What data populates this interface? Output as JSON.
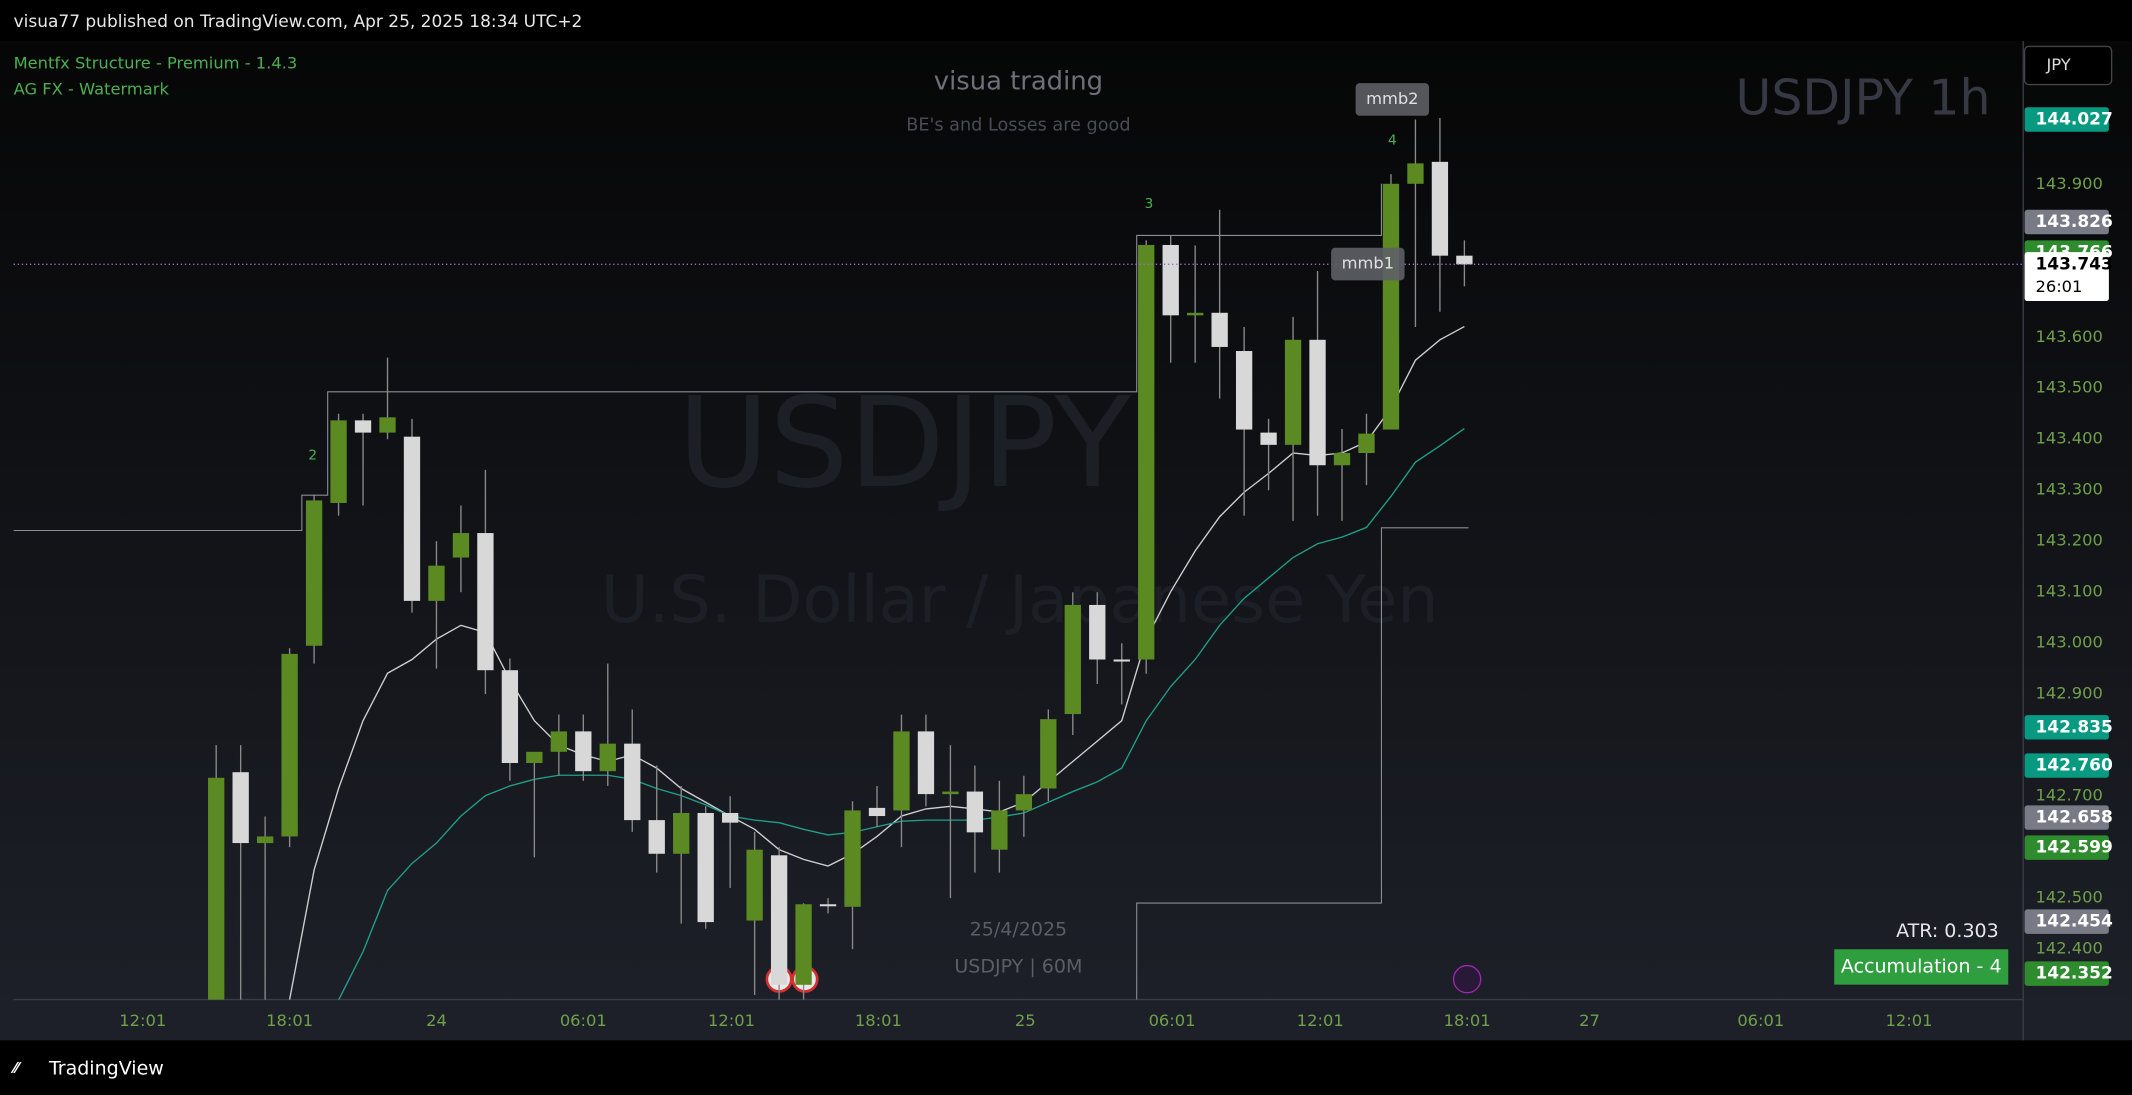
{
  "header": "visua77 published on TradingView.com, Apr 25, 2025 18:34 UTC+2",
  "indicators": [
    "Mentfx Structure - Premium - 1.4.3",
    "AG FX - Watermark"
  ],
  "watermark": {
    "brand": "visua trading",
    "motto": "BE's and Losses are good",
    "symbol_interval": "USDJPY 1h",
    "symbol": "USDJPY",
    "description": "U.S. Dollar / Japanese Yen",
    "date": "25/4/2025",
    "footer": "USDJPY | 60M"
  },
  "currency": "JPY",
  "atr": "ATR: 0.303",
  "phase": "Accumulation - 4",
  "brand": "TradingView",
  "chart_data": {
    "type": "candlestick",
    "colors": {
      "up": "#5b8a22",
      "down": "#d8d8d8",
      "wick": "#8a8a8a"
    },
    "candles": {
      "open": [
        142.25,
        142.747,
        142.608,
        142.621,
        142.995,
        143.275,
        143.437,
        143.413,
        143.405,
        143.083,
        143.168,
        143.216,
        142.947,
        142.765,
        142.787,
        142.827,
        142.749,
        142.803,
        142.653,
        142.587,
        142.667,
        142.667,
        142.456,
        142.584,
        142.33,
        142.488,
        142.483,
        142.677,
        142.672,
        142.827,
        142.704,
        142.709,
        142.595,
        142.672,
        142.715,
        142.861,
        143.075,
        142.968,
        142.968,
        143.781,
        143.643,
        143.648,
        143.573,
        143.413,
        143.389,
        143.595,
        143.349,
        143.373,
        143.419,
        143.901,
        143.944,
        143.76
      ],
      "high": [
        142.8,
        142.8,
        142.66,
        142.99,
        143.29,
        143.45,
        143.45,
        143.56,
        143.44,
        143.2,
        143.27,
        143.34,
        142.97,
        142.78,
        142.86,
        142.86,
        142.96,
        142.87,
        142.76,
        142.72,
        142.68,
        142.7,
        142.63,
        142.6,
        142.49,
        142.5,
        142.69,
        142.72,
        142.86,
        142.86,
        142.8,
        142.76,
        142.73,
        142.74,
        142.87,
        143.1,
        143.1,
        143.0,
        143.79,
        143.8,
        143.78,
        143.85,
        143.62,
        143.44,
        143.64,
        143.73,
        143.42,
        143.45,
        143.92,
        144.027,
        144.03,
        143.79
      ],
      "low": [
        142.2,
        142.29,
        142.3,
        142.6,
        142.96,
        143.25,
        143.27,
        143.4,
        143.06,
        142.95,
        143.1,
        142.9,
        142.73,
        142.58,
        142.74,
        142.73,
        142.72,
        142.63,
        142.55,
        142.45,
        142.44,
        142.52,
        142.31,
        142.3,
        142.3,
        142.47,
        142.4,
        142.64,
        142.6,
        142.68,
        142.5,
        142.55,
        142.55,
        142.62,
        142.69,
        142.82,
        142.92,
        142.88,
        142.94,
        143.55,
        143.55,
        143.48,
        143.25,
        143.3,
        143.24,
        143.25,
        143.24,
        143.31,
        143.42,
        143.62,
        143.65,
        143.7
      ],
      "close": [
        142.736,
        142.608,
        142.621,
        142.979,
        143.28,
        143.437,
        143.413,
        143.443,
        143.083,
        143.152,
        143.216,
        142.947,
        142.765,
        142.787,
        142.827,
        142.749,
        142.803,
        142.653,
        142.587,
        142.667,
        142.453,
        142.648,
        142.595,
        142.33,
        142.488,
        142.485,
        142.672,
        142.661,
        142.827,
        142.704,
        142.709,
        142.629,
        142.672,
        142.704,
        142.851,
        143.075,
        142.968,
        142.965,
        143.781,
        143.643,
        143.648,
        143.581,
        143.419,
        143.389,
        143.595,
        143.349,
        143.373,
        143.411,
        143.901,
        143.941,
        143.76,
        143.743
      ]
    },
    "series": [
      {
        "color": "#cfcfcf",
        "values": [
          null,
          null,
          null,
          142.301,
          142.555,
          142.715,
          142.848,
          142.941,
          142.968,
          143.008,
          143.035,
          143.021,
          142.928,
          142.848,
          142.8,
          142.781,
          142.768,
          142.781,
          142.755,
          142.715,
          142.688,
          142.661,
          142.635,
          142.595,
          142.576,
          142.563,
          142.587,
          142.621,
          142.661,
          142.675,
          142.68,
          142.675,
          142.669,
          142.688,
          142.728,
          142.768,
          142.808,
          142.848,
          143.008,
          143.101,
          143.181,
          143.248,
          143.296,
          143.333,
          143.373,
          143.368,
          143.373,
          143.395,
          143.461,
          143.555,
          143.595,
          143.621
        ]
      },
      {
        "color": "#1f9e88",
        "values": [
          null,
          null,
          null,
          null,
          null,
          142.3,
          142.395,
          142.515,
          142.568,
          142.608,
          142.661,
          142.701,
          142.72,
          142.733,
          142.741,
          142.741,
          142.741,
          142.733,
          142.715,
          142.701,
          142.683,
          142.661,
          142.653,
          142.648,
          142.635,
          142.624,
          142.629,
          142.64,
          142.651,
          142.653,
          142.653,
          142.653,
          142.659,
          142.667,
          142.688,
          142.709,
          142.728,
          142.755,
          142.848,
          142.915,
          142.968,
          143.035,
          143.088,
          143.128,
          143.168,
          143.195,
          143.208,
          143.227,
          143.288,
          143.355,
          143.387,
          143.421
        ]
      }
    ],
    "ylim": [
      142.301,
      144.181
    ],
    "yticks": [
      {
        "value": 142.4,
        "label": "142.400"
      },
      {
        "value": 142.5,
        "label": "142.500"
      },
      {
        "value": 142.7,
        "label": "142.700"
      },
      {
        "value": 142.9,
        "label": "142.900"
      },
      {
        "value": 143.0,
        "label": "143.000"
      },
      {
        "value": 143.1,
        "label": "143.100"
      },
      {
        "value": 143.2,
        "label": "143.200"
      },
      {
        "value": 143.3,
        "label": "143.300"
      },
      {
        "value": 143.4,
        "label": "143.400"
      },
      {
        "value": 143.5,
        "label": "143.500"
      },
      {
        "value": 143.6,
        "label": "143.600"
      },
      {
        "value": 143.9,
        "label": "143.900"
      }
    ],
    "x_labels": [
      "12:01",
      "18:01",
      "24",
      "06:01",
      "12:01",
      "18:01",
      "25",
      "06:01",
      "12:01",
      "18:01",
      "27",
      "06:01",
      "12:01"
    ],
    "price_labels": [
      {
        "value": 144.027,
        "label": "144.027",
        "color": "#089981"
      },
      {
        "value": 143.826,
        "label": "143.826",
        "color": "#787b86"
      },
      {
        "value": 143.766,
        "label": "143.766",
        "color": "#2e8b2e"
      },
      {
        "value": 143.743,
        "label": "143.743",
        "countdown": "26:01",
        "color": "#ffffff"
      },
      {
        "value": 142.835,
        "label": "142.835",
        "color": "#089981"
      },
      {
        "value": 142.76,
        "label": "142.760",
        "color": "#089981"
      },
      {
        "value": 142.658,
        "label": "142.658",
        "color": "#787b86"
      },
      {
        "value": 142.599,
        "label": "142.599",
        "color": "#2e8b2e"
      },
      {
        "value": 142.454,
        "label": "142.454",
        "color": "#787b86"
      },
      {
        "value": 142.352,
        "label": "142.352",
        "color": "#2e8b2e"
      }
    ],
    "annotations": [
      "mmb2",
      "mmb1",
      "2",
      "3",
      "4"
    ]
  }
}
